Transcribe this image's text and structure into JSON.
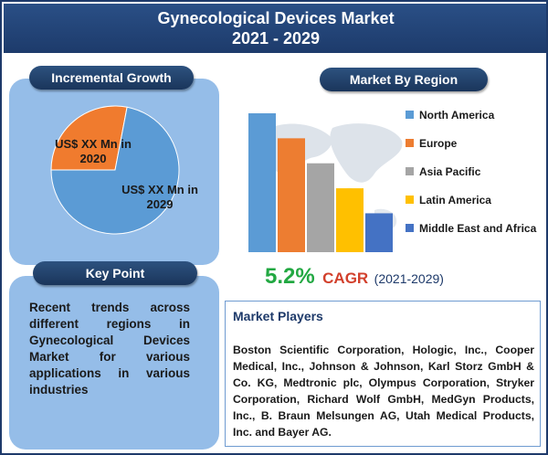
{
  "title": {
    "line1": "Gynecological Devices Market",
    "line2": "2021 - 2029"
  },
  "incremental_growth": {
    "heading": "Incremental Growth",
    "label_2020": "US$ XX Mn in 2020",
    "label_2029": "US$ XX Mn in 2029"
  },
  "key_point": {
    "heading": "Key Point",
    "text": "Recent trends across different regions in Gynecological Devices Market for various applications in various industries"
  },
  "region": {
    "heading": "Market By Region"
  },
  "cagr": {
    "value": "5.2%",
    "word": "CAGR",
    "years": "(2021-2029)"
  },
  "players": {
    "heading": "Market Players",
    "text": "Boston Scientific Corporation, Hologic, Inc., Cooper Medical, Inc., Johnson & Johnson, Karl Storz GmbH & Co. KG, Medtronic plc, Olympus Corporation, Stryker Corporation, Richard Wolf GmbH, MedGyn Products, Inc., B. Braun Melsungen AG, Utah Medical Products, Inc. and Bayer AG."
  },
  "colors": {
    "title_bg": "#1d3b6b",
    "panel_bg": "#95bde8",
    "pie_2020": "#f07b2e",
    "pie_2029": "#5b9bd5",
    "cagr_green": "#22a842",
    "cagr_red": "#d2402c"
  },
  "chart_data": [
    {
      "type": "pie",
      "title": "Incremental Growth",
      "slices": [
        {
          "name": "US$ XX Mn in 2020",
          "value": 28,
          "color": "#f07b2e"
        },
        {
          "name": "US$ XX Mn in 2029",
          "value": 72,
          "color": "#5b9bd5"
        }
      ]
    },
    {
      "type": "bar",
      "title": "Market By Region",
      "categories": [
        "North America",
        "Europe",
        "Asia Pacific",
        "Latin America",
        "Middle East and Africa"
      ],
      "values": [
        100,
        82,
        64,
        46,
        28
      ],
      "colors": [
        "#5b9bd5",
        "#ed7d31",
        "#a5a5a5",
        "#ffc000",
        "#4472c4"
      ],
      "legend_position": "right",
      "grid": false
    }
  ]
}
